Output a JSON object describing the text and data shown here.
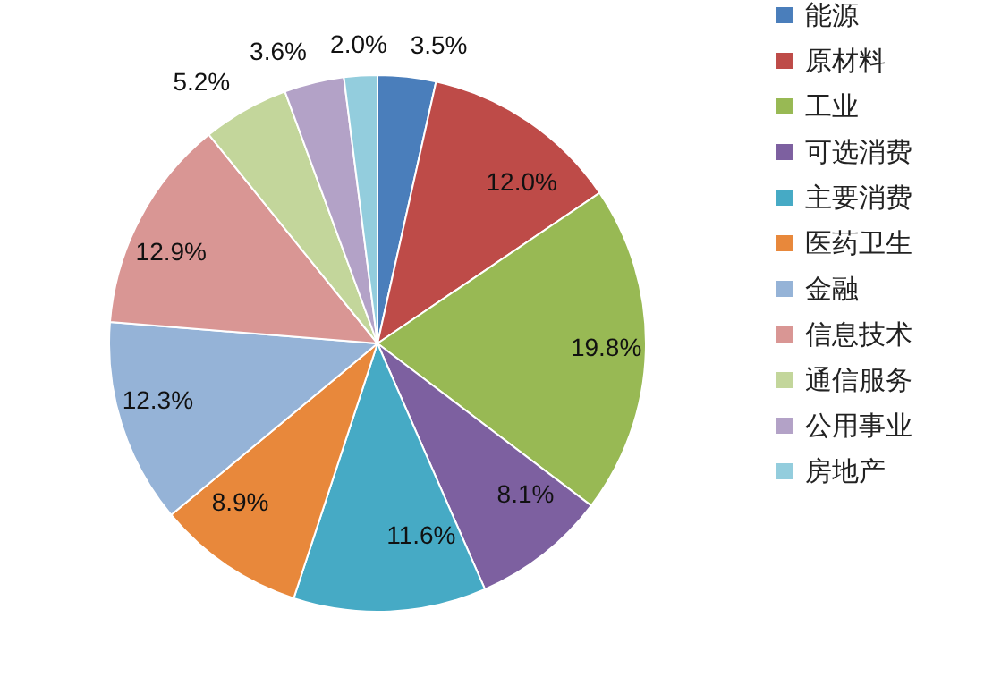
{
  "chart_data": {
    "type": "pie",
    "categories": [
      "能源",
      "原材料",
      "工业",
      "可选消费",
      "主要消费",
      "医药卫生",
      "金融",
      "信息技术",
      "通信服务",
      "公用事业",
      "房地产"
    ],
    "values": [
      3.5,
      12.0,
      19.8,
      8.1,
      11.6,
      8.9,
      12.3,
      12.9,
      5.2,
      3.6,
      2.0
    ],
    "value_labels": [
      "3.5%",
      "12.0%",
      "19.8%",
      "8.1%",
      "11.6%",
      "8.9%",
      "12.3%",
      "12.9%",
      "5.2%",
      "3.6%",
      "2.0%"
    ],
    "colors": [
      "#4a7ebb",
      "#be4b48",
      "#98b954",
      "#7d60a0",
      "#46aac5",
      "#e8883b",
      "#95b3d7",
      "#d99694",
      "#c3d69b",
      "#b3a2c7",
      "#93cddd"
    ],
    "legend": "right"
  }
}
